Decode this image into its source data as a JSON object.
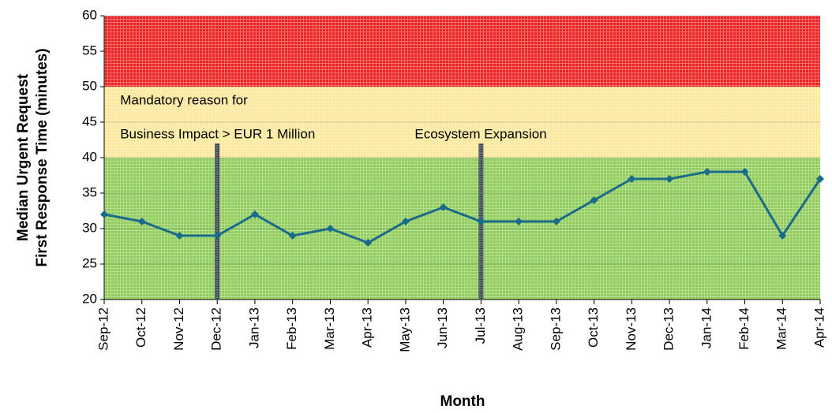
{
  "chart_data": {
    "type": "line",
    "y_label": [
      "Median Urgent Request",
      "First Response Time (minutes)"
    ],
    "x_label": "Month",
    "categories": [
      "Sep-12",
      "Oct-12",
      "Nov-12",
      "Dec-12",
      "Jan-13",
      "Feb-13",
      "Mar-13",
      "Apr-13",
      "May-13",
      "Jun-13",
      "Jul-13",
      "Aug-13",
      "Sep-13",
      "Oct-13",
      "Nov-13",
      "Dec-13",
      "Jan-14",
      "Feb-14",
      "Mar-14",
      "Apr-14"
    ],
    "series": [
      {
        "color": "#1a6a8a",
        "values": [
          32,
          31,
          29,
          29,
          32,
          29,
          30,
          28,
          31,
          33,
          31,
          31,
          31,
          34,
          37,
          37,
          38,
          38,
          29,
          37
        ]
      }
    ],
    "ylim": [
      20,
      60
    ],
    "yticks": [
      20,
      25,
      30,
      35,
      40,
      45,
      50,
      55,
      60
    ],
    "bands": [
      {
        "from": 20,
        "to": 40,
        "color": "#8fcc5a"
      },
      {
        "from": 40,
        "to": 50,
        "color": "#fbe89a"
      },
      {
        "from": 50,
        "to": 60,
        "color": "#ee2222"
      }
    ],
    "annotations": [
      {
        "category": "Dec-12",
        "top": 42,
        "lines": [
          "Mandatory reason for",
          "Business Impact > EUR 1 Million"
        ]
      },
      {
        "category": "Jul-13",
        "top": 42,
        "lines": [
          "Ecosystem Expansion"
        ]
      }
    ]
  }
}
